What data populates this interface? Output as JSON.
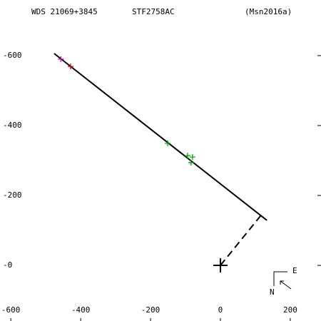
{
  "chart_data": {
    "type": "scatter",
    "title": "WDS 21069+3845",
    "subtitle": "STF2758AC",
    "reference": "(Msn2016a)",
    "compass": {
      "east": "E",
      "north": "N"
    },
    "xlim": [
      -631,
      288
    ],
    "ylim": [
      -159,
      759
    ],
    "xticks": [
      -600,
      -400,
      -200,
      0,
      200
    ],
    "yticks": [
      {
        "value": 600,
        "label": "-600"
      },
      {
        "value": 400,
        "label": "-400"
      },
      {
        "value": 200,
        "label": "-200"
      },
      {
        "value": 0,
        "label": "-0"
      }
    ],
    "orbit_line": {
      "x": [
        -476,
        133
      ],
      "y": [
        606,
        129
      ]
    },
    "node_line": {
      "x": [
        0,
        116
      ],
      "y": [
        0,
        143
      ]
    },
    "primary": {
      "x": 0,
      "y": 0
    },
    "series": [
      {
        "color": "#cc00cc",
        "x": [
          -457
        ],
        "y": [
          590
        ]
      },
      {
        "color": "#dd0000",
        "x": [
          -429
        ],
        "y": [
          569
        ]
      },
      {
        "color": "#00aa00",
        "x": [
          -151,
          -94,
          -80,
          -84
        ],
        "y": [
          349,
          314,
          310,
          294
        ]
      }
    ]
  }
}
